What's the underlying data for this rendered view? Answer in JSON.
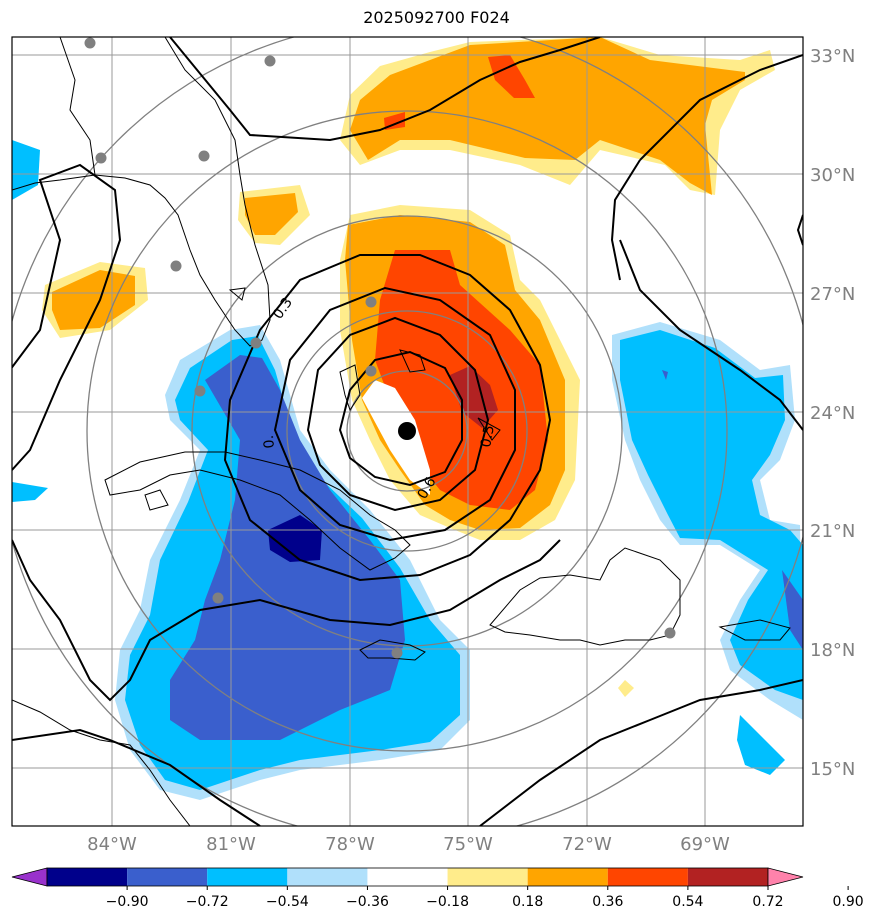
{
  "title": "2025092700 F024",
  "lat_labels": [
    "33°N",
    "30°N",
    "27°N",
    "24°N",
    "21°N",
    "18°N",
    "15°N"
  ],
  "lon_labels": [
    "84°W",
    "81°W",
    "78°W",
    "75°W",
    "72°W",
    "69°W"
  ],
  "contour_labels": [
    "0.3",
    "0.6",
    "0.5",
    "0."
  ],
  "colorbar": {
    "ticks": [
      "−0.90",
      "−0.72",
      "−0.54",
      "−0.36",
      "−0.18",
      "0.18",
      "0.36",
      "0.54",
      "0.72",
      "0.90"
    ],
    "colors": [
      "#9932cc",
      "#00008b",
      "#3a5fcd",
      "#00bfff",
      "#b0e0fb",
      "#ffffff",
      "#ffec8b",
      "#ffa500",
      "#ff4500",
      "#b22222",
      "#ff82ab"
    ]
  }
}
